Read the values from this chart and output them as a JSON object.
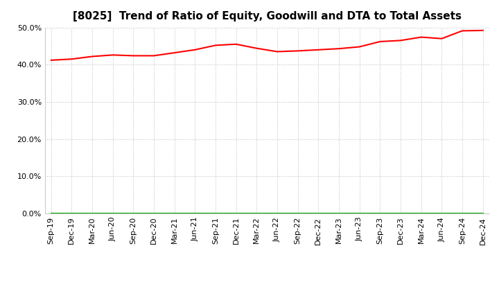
{
  "title": "[8025]  Trend of Ratio of Equity, Goodwill and DTA to Total Assets",
  "x_labels": [
    "Sep-19",
    "Dec-19",
    "Mar-20",
    "Jun-20",
    "Sep-20",
    "Dec-20",
    "Mar-21",
    "Jun-21",
    "Sep-21",
    "Dec-21",
    "Mar-22",
    "Jun-22",
    "Sep-22",
    "Dec-22",
    "Mar-23",
    "Jun-23",
    "Sep-23",
    "Dec-23",
    "Mar-24",
    "Jun-24",
    "Sep-24",
    "Dec-24"
  ],
  "equity": [
    0.412,
    0.415,
    0.422,
    0.426,
    0.424,
    0.424,
    0.432,
    0.44,
    0.452,
    0.455,
    0.444,
    0.435,
    0.437,
    0.44,
    0.443,
    0.448,
    0.462,
    0.465,
    0.474,
    0.47,
    0.491,
    0.492
  ],
  "goodwill": [
    0.0,
    0.0,
    0.0,
    0.0,
    0.0,
    0.0,
    0.0,
    0.0,
    0.0,
    0.0,
    0.0,
    0.0,
    0.0,
    0.0,
    0.0,
    0.0,
    0.0,
    0.0,
    0.0,
    0.0,
    0.0,
    0.0
  ],
  "dta": [
    0.0,
    0.0,
    0.0,
    0.0,
    0.0,
    0.0,
    0.0,
    0.0,
    0.0,
    0.0,
    0.0,
    0.0,
    0.0,
    0.0,
    0.0,
    0.0,
    0.0,
    0.0,
    0.0,
    0.0,
    0.0,
    0.0
  ],
  "equity_color": "#FF0000",
  "goodwill_color": "#0000CC",
  "dta_color": "#00AA00",
  "ylim": [
    0.0,
    0.5
  ],
  "yticks": [
    0.0,
    0.1,
    0.2,
    0.3,
    0.4,
    0.5
  ],
  "background_color": "#FFFFFF",
  "plot_bg_color": "#FFFFFF",
  "grid_color": "#BBBBBB",
  "title_fontsize": 11,
  "tick_fontsize": 8
}
